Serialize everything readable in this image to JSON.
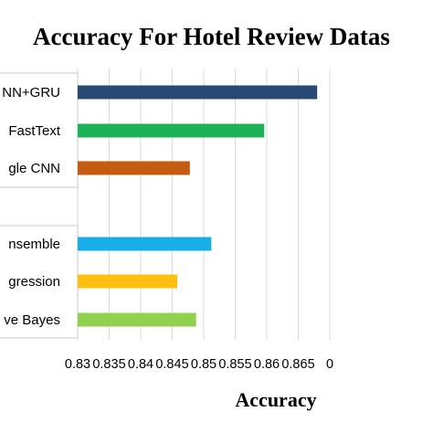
{
  "chart_data": {
    "type": "bar",
    "orientation": "horizontal",
    "title": "Accuracy For Hotel Review Datas",
    "xlabel": "Accuracy",
    "ylabel": "",
    "xlim": [
      0.83,
      0.868
    ],
    "x_ticks": [
      "0.83",
      "0.835",
      "0.84",
      "0.845",
      "0.85",
      "0.855",
      "0.86",
      "0.865",
      "0"
    ],
    "grid": "vertical",
    "legend": "none",
    "categories": [
      {
        "label": "NN+GRU",
        "value": 0.868,
        "color": "#264a74",
        "group": "top"
      },
      {
        "label": "FastText",
        "value": 0.8596,
        "color": "#1cb257",
        "group": "top"
      },
      {
        "label": "gle CNN",
        "value": 0.8478,
        "color": "#c55a11",
        "group": "top"
      },
      {
        "label": "nsemble",
        "value": 0.8512,
        "color": "#17aee8",
        "group": "bottom"
      },
      {
        "label": "gression",
        "value": 0.8458,
        "color": "#fdc00e",
        "group": "bottom"
      },
      {
        "label": "ve Bayes",
        "value": 0.8488,
        "color": "#92d050",
        "group": "bottom"
      }
    ]
  }
}
